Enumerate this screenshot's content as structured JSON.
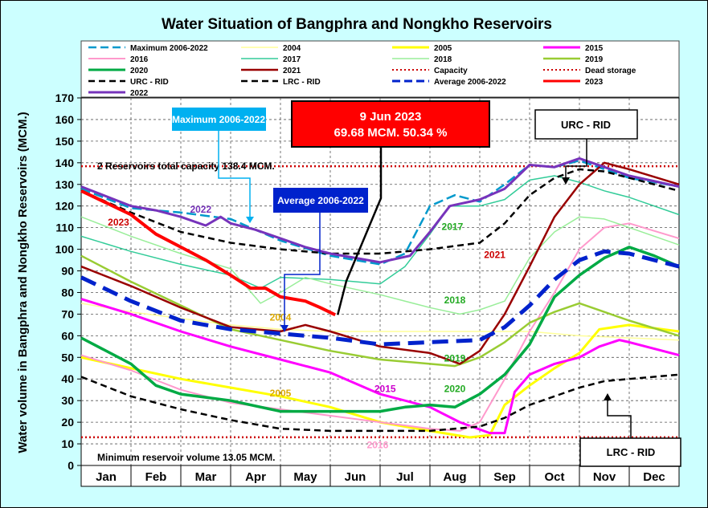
{
  "chart_data": {
    "type": "line",
    "title": "Water Situation of Bangphra and Nongkho Reservoirs",
    "ylabel": "Water volume in Bangphra and Nongkho Reservoirs (MCM.)",
    "xlabel": "",
    "ylim": [
      0,
      170
    ],
    "y_ticks": [
      0,
      10,
      20,
      30,
      40,
      50,
      60,
      70,
      80,
      90,
      100,
      110,
      120,
      130,
      140,
      150,
      160,
      170
    ],
    "x_range": [
      0,
      12
    ],
    "months": [
      "Jan",
      "Feb",
      "Mar",
      "Apr",
      "May",
      "Jun",
      "Jul",
      "Aug",
      "Sep",
      "Oct",
      "Nov",
      "Dec"
    ],
    "grid": true,
    "legend_position": "top",
    "series": [
      {
        "key": "max",
        "name": "Maximum 2006-2022",
        "color": "#0099cc",
        "dash": "12,5",
        "width": 2.5,
        "points": [
          [
            0,
            128
          ],
          [
            1,
            119
          ],
          [
            2,
            117
          ],
          [
            3,
            114
          ],
          [
            4,
            104
          ],
          [
            5,
            97
          ],
          [
            6,
            93
          ],
          [
            6.5,
            98
          ],
          [
            7,
            120
          ],
          [
            7.5,
            125
          ],
          [
            8,
            122
          ],
          [
            8.5,
            130
          ],
          [
            9,
            139
          ],
          [
            9.5,
            138
          ],
          [
            10,
            141
          ],
          [
            10.5,
            137
          ],
          [
            11,
            133
          ],
          [
            12,
            129
          ]
        ]
      },
      {
        "key": "y2004",
        "name": "2004",
        "color": "#ffff99",
        "dash": "",
        "width": 1.5,
        "points": [
          [
            0,
            75
          ],
          [
            1,
            71
          ],
          [
            2,
            68
          ],
          [
            3,
            65
          ],
          [
            4,
            63
          ],
          [
            5,
            62
          ],
          [
            6,
            62
          ],
          [
            7,
            62
          ],
          [
            8,
            62
          ],
          [
            9,
            62
          ],
          [
            10,
            60
          ],
          [
            11,
            59
          ],
          [
            12,
            58
          ]
        ]
      },
      {
        "key": "y2005",
        "name": "2005",
        "color": "#ffff00",
        "dash": "",
        "width": 3,
        "points": [
          [
            0,
            50
          ],
          [
            1,
            45
          ],
          [
            2,
            40
          ],
          [
            3,
            36
          ],
          [
            4,
            32
          ],
          [
            5,
            27
          ],
          [
            6,
            20
          ],
          [
            7,
            16
          ],
          [
            7.8,
            13
          ],
          [
            8.2,
            14
          ],
          [
            8.5,
            28
          ],
          [
            9,
            37
          ],
          [
            9.5,
            45
          ],
          [
            10,
            52
          ],
          [
            10.4,
            63
          ],
          [
            11,
            65
          ],
          [
            12,
            62
          ]
        ]
      },
      {
        "key": "y2015",
        "name": "2015",
        "color": "#ff00ff",
        "dash": "",
        "width": 3,
        "points": [
          [
            0,
            77
          ],
          [
            1,
            70
          ],
          [
            2,
            62
          ],
          [
            3,
            55
          ],
          [
            4,
            49
          ],
          [
            5,
            43
          ],
          [
            6,
            33
          ],
          [
            7,
            27
          ],
          [
            7.6,
            20
          ],
          [
            8.2,
            15
          ],
          [
            8.5,
            15
          ],
          [
            8.7,
            34
          ],
          [
            9,
            42
          ],
          [
            9.5,
            47
          ],
          [
            10,
            50
          ],
          [
            10.4,
            55
          ],
          [
            10.8,
            58
          ],
          [
            11,
            57
          ],
          [
            12,
            51
          ]
        ]
      },
      {
        "key": "y2016",
        "name": "2016",
        "color": "#ff99cc",
        "dash": "",
        "width": 2,
        "points": [
          [
            0,
            51
          ],
          [
            1,
            44
          ],
          [
            2,
            35
          ],
          [
            3,
            29
          ],
          [
            4,
            26
          ],
          [
            5,
            23
          ],
          [
            6,
            20
          ],
          [
            7,
            17
          ],
          [
            7.6,
            16
          ],
          [
            8,
            20
          ],
          [
            8.5,
            40
          ],
          [
            9,
            62
          ],
          [
            9.5,
            80
          ],
          [
            10,
            100
          ],
          [
            10.5,
            110
          ],
          [
            11,
            112
          ],
          [
            12,
            105
          ]
        ]
      },
      {
        "key": "y2017",
        "name": "2017",
        "color": "#33cc99",
        "dash": "",
        "width": 1.5,
        "points": [
          [
            0,
            106
          ],
          [
            1,
            99
          ],
          [
            2,
            93
          ],
          [
            3,
            88
          ],
          [
            3.6,
            82
          ],
          [
            4,
            87
          ],
          [
            5,
            86
          ],
          [
            6,
            84
          ],
          [
            6.5,
            92
          ],
          [
            7,
            107
          ],
          [
            7.4,
            120
          ],
          [
            8,
            120
          ],
          [
            8.5,
            123
          ],
          [
            9,
            132
          ],
          [
            9.5,
            134
          ],
          [
            10,
            131
          ],
          [
            10.5,
            127
          ],
          [
            11,
            124
          ],
          [
            12,
            116
          ]
        ]
      },
      {
        "key": "y2018",
        "name": "2018",
        "color": "#99ee99",
        "dash": "",
        "width": 1.5,
        "points": [
          [
            0,
            115
          ],
          [
            1,
            106
          ],
          [
            2,
            98
          ],
          [
            3,
            91
          ],
          [
            3.6,
            75
          ],
          [
            4,
            80
          ],
          [
            4.5,
            87
          ],
          [
            5,
            84
          ],
          [
            6,
            79
          ],
          [
            7,
            73
          ],
          [
            7.6,
            70
          ],
          [
            8,
            72
          ],
          [
            8.5,
            76
          ],
          [
            9,
            96
          ],
          [
            9.5,
            108
          ],
          [
            10,
            115
          ],
          [
            10.5,
            114
          ],
          [
            11,
            110
          ],
          [
            12,
            102
          ]
        ]
      },
      {
        "key": "y2019",
        "name": "2019",
        "color": "#99cc33",
        "dash": "",
        "width": 2.5,
        "points": [
          [
            0,
            97
          ],
          [
            1,
            85
          ],
          [
            2,
            74
          ],
          [
            3,
            63
          ],
          [
            4,
            58
          ],
          [
            5,
            53
          ],
          [
            6,
            49
          ],
          [
            7,
            47
          ],
          [
            7.5,
            46
          ],
          [
            8,
            50
          ],
          [
            8.5,
            57
          ],
          [
            9,
            66
          ],
          [
            9.5,
            71
          ],
          [
            10,
            75
          ],
          [
            10.5,
            71
          ],
          [
            11,
            67
          ],
          [
            12,
            60
          ]
        ]
      },
      {
        "key": "y2020",
        "name": "2020",
        "color": "#00aa44",
        "dash": "",
        "width": 3.5,
        "points": [
          [
            0,
            59
          ],
          [
            1,
            47
          ],
          [
            1.5,
            37
          ],
          [
            2,
            33
          ],
          [
            3,
            30
          ],
          [
            4,
            25
          ],
          [
            5,
            25
          ],
          [
            6,
            25
          ],
          [
            6.5,
            27
          ],
          [
            7,
            28
          ],
          [
            7.5,
            27
          ],
          [
            8,
            33
          ],
          [
            8.5,
            42
          ],
          [
            9,
            56
          ],
          [
            9.5,
            78
          ],
          [
            10,
            88
          ],
          [
            10.5,
            96
          ],
          [
            11,
            101
          ],
          [
            11.5,
            97
          ],
          [
            12,
            92
          ]
        ]
      },
      {
        "key": "y2021",
        "name": "2021",
        "color": "#990000",
        "dash": "",
        "width": 2.5,
        "points": [
          [
            0,
            92
          ],
          [
            1,
            83
          ],
          [
            2,
            73
          ],
          [
            3,
            64
          ],
          [
            4,
            62
          ],
          [
            4.5,
            65
          ],
          [
            5,
            62
          ],
          [
            6,
            55
          ],
          [
            7,
            52
          ],
          [
            7.6,
            47
          ],
          [
            8,
            53
          ],
          [
            8.5,
            70
          ],
          [
            9,
            92
          ],
          [
            9.5,
            115
          ],
          [
            10,
            130
          ],
          [
            10.5,
            140
          ],
          [
            11,
            137
          ],
          [
            12,
            130
          ]
        ]
      },
      {
        "key": "urc",
        "name": "URC - RID",
        "color": "#000000",
        "dash": "8,5",
        "width": 2.5,
        "points": [
          [
            0,
            127
          ],
          [
            1,
            117
          ],
          [
            2,
            108
          ],
          [
            3,
            103
          ],
          [
            4,
            100
          ],
          [
            5,
            98
          ],
          [
            6,
            98
          ],
          [
            7,
            100
          ],
          [
            8,
            103
          ],
          [
            8.5,
            112
          ],
          [
            9,
            125
          ],
          [
            9.5,
            133
          ],
          [
            10,
            137
          ],
          [
            10.5,
            136
          ],
          [
            11,
            133
          ],
          [
            12,
            127
          ]
        ]
      },
      {
        "key": "lrc",
        "name": "LRC - RID",
        "color": "#000000",
        "dash": "8,5",
        "width": 2.5,
        "points": [
          [
            0,
            41
          ],
          [
            1,
            32
          ],
          [
            2,
            26
          ],
          [
            3,
            21
          ],
          [
            4,
            17
          ],
          [
            5,
            16
          ],
          [
            6,
            16
          ],
          [
            7,
            16
          ],
          [
            8,
            18
          ],
          [
            8.5,
            22
          ],
          [
            9,
            28
          ],
          [
            9.5,
            32
          ],
          [
            10,
            36
          ],
          [
            10.5,
            39
          ],
          [
            11,
            40
          ],
          [
            12,
            42
          ]
        ]
      },
      {
        "key": "avg",
        "name": "Average 2006-2022",
        "color": "#0022cc",
        "dash": "20,10",
        "width": 5,
        "points": [
          [
            0,
            87
          ],
          [
            1,
            76
          ],
          [
            2,
            67
          ],
          [
            3,
            63
          ],
          [
            4,
            61
          ],
          [
            5,
            59
          ],
          [
            6,
            56
          ],
          [
            7,
            57
          ],
          [
            8,
            58
          ],
          [
            8.5,
            64
          ],
          [
            9,
            74
          ],
          [
            9.5,
            86
          ],
          [
            10,
            95
          ],
          [
            10.5,
            99
          ],
          [
            11,
            98
          ],
          [
            12,
            92
          ]
        ]
      },
      {
        "key": "y2022",
        "name": "2022",
        "color": "#7733bb",
        "dash": "",
        "width": 3,
        "points": [
          [
            0,
            129
          ],
          [
            1,
            120
          ],
          [
            1.5,
            118
          ],
          [
            2,
            115
          ],
          [
            2.5,
            111
          ],
          [
            2.8,
            115
          ],
          [
            3,
            112
          ],
          [
            3.5,
            109
          ],
          [
            4,
            105
          ],
          [
            4.5,
            101
          ],
          [
            5,
            98
          ],
          [
            5.5,
            96
          ],
          [
            6,
            94
          ],
          [
            6.6,
            97
          ],
          [
            7,
            108
          ],
          [
            7.4,
            120
          ],
          [
            8,
            123
          ],
          [
            8.5,
            128
          ],
          [
            9,
            139
          ],
          [
            9.5,
            138
          ],
          [
            10,
            142
          ],
          [
            10.5,
            138
          ],
          [
            11,
            134
          ],
          [
            12,
            129
          ]
        ]
      },
      {
        "key": "y2023",
        "name": "2023",
        "color": "#ff0000",
        "dash": "",
        "width": 4,
        "points": [
          [
            0,
            127
          ],
          [
            1,
            116
          ],
          [
            1.5,
            107
          ],
          [
            2,
            101
          ],
          [
            2.5,
            95
          ],
          [
            3,
            88
          ],
          [
            3.4,
            82
          ],
          [
            3.7,
            82
          ],
          [
            4,
            78
          ],
          [
            4.5,
            76
          ],
          [
            4.8,
            73
          ],
          [
            5.1,
            69.68
          ]
        ]
      }
    ],
    "legend_extra": [
      {
        "name": "Capacity",
        "color": "#cc0000",
        "dash": "2,3",
        "width": 2
      },
      {
        "name": "Dead storage",
        "color": "#cc0000",
        "dash": "2,3",
        "width": 2
      }
    ],
    "capacity": 138.4,
    "dead_storage": 13.05,
    "annotations": {
      "capacity_text": "2 Reservoirs total capacity 138.4 MCM.",
      "dead_text": "Minimum reservoir volume 13.05 MCM.",
      "current_date": "9 Jun 2023",
      "current_value": "69.68 MCM. 50.34 %",
      "max_box": "Maximum 2006-2022",
      "avg_box": "Average 2006-2022",
      "urc_box": "URC - RID",
      "lrc_box": "LRC - RID"
    },
    "series_labels": [
      {
        "text": "2023",
        "color": "#cc0000",
        "x": 0.75,
        "y": 111
      },
      {
        "text": "2022",
        "color": "#7733bb",
        "x": 2.4,
        "y": 117
      },
      {
        "text": "2017",
        "color": "#22aa22",
        "x": 7.45,
        "y": 109
      },
      {
        "text": "2021",
        "color": "#cc0000",
        "x": 8.3,
        "y": 96
      },
      {
        "text": "2018",
        "color": "#22aa22",
        "x": 7.5,
        "y": 75
      },
      {
        "text": "2004",
        "color": "#ddaa00",
        "x": 4.0,
        "y": 67
      },
      {
        "text": "2019",
        "color": "#22aa22",
        "x": 7.5,
        "y": 48
      },
      {
        "text": "2015",
        "color": "#cc00cc",
        "x": 6.1,
        "y": 34
      },
      {
        "text": "2020",
        "color": "#22aa22",
        "x": 7.5,
        "y": 34
      },
      {
        "text": "2005",
        "color": "#ddaa00",
        "x": 4.0,
        "y": 32
      },
      {
        "text": "2016",
        "color": "#ff99cc",
        "x": 5.95,
        "y": 8
      }
    ]
  }
}
